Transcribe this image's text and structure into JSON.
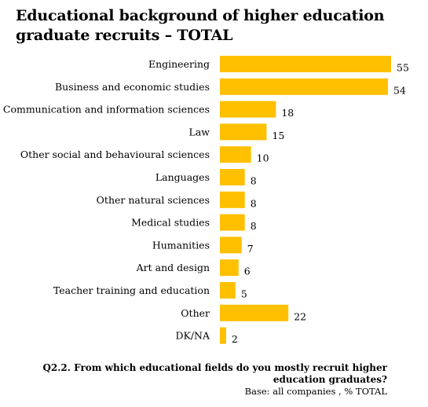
{
  "title_lines": [
    "Educational background of higher education",
    "graduate recruits – TOTAL"
  ],
  "footnote": {
    "question_lines": [
      "Q2.2. From which educational fields do you mostly recruit higher",
      "education graduates?"
    ],
    "base": "Base: all companies , % TOTAL"
  },
  "colors": {
    "bar": "#FFC000"
  },
  "chart_data": {
    "type": "bar",
    "orientation": "horizontal",
    "title": "Educational background of higher education graduate recruits – TOTAL",
    "categories": [
      "Engineering",
      "Business and economic studies",
      "Communication and information sciences",
      "Law",
      "Other social and behavioural sciences",
      "Languages",
      "Other natural sciences",
      "Medical studies",
      "Humanities",
      "Art and design",
      "Teacher training and education",
      "Other",
      "DK/NA"
    ],
    "values": [
      55,
      54,
      18,
      15,
      10,
      8,
      8,
      8,
      7,
      6,
      5,
      22,
      2
    ],
    "xlim": [
      0,
      55
    ],
    "grid": false,
    "legend": "none"
  }
}
